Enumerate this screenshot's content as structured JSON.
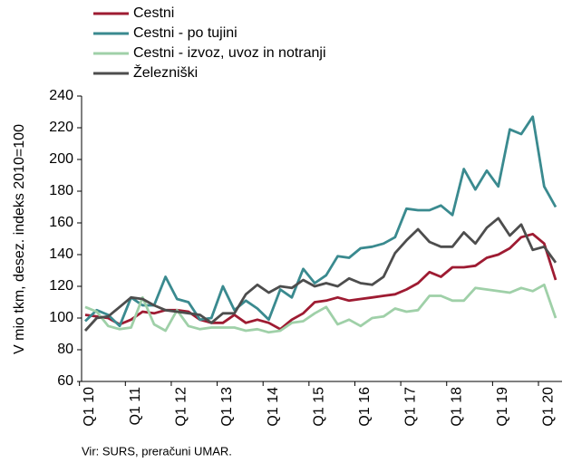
{
  "chart_data": {
    "type": "line",
    "y_label": "V mio tkm, desez. indeks 2010=100",
    "source": "Vir: SURS, preračuni UMAR.",
    "categories": [
      "Q1 10",
      null,
      null,
      null,
      "Q1 11",
      null,
      null,
      null,
      "Q1 12",
      null,
      null,
      null,
      "Q1 13",
      null,
      null,
      null,
      "Q1 14",
      null,
      null,
      null,
      "Q1 15",
      null,
      null,
      null,
      "Q1 16",
      null,
      null,
      null,
      "Q1 17",
      null,
      null,
      null,
      "Q1 18",
      null,
      null,
      null,
      "Q1 19",
      null,
      null,
      null,
      "Q1 20",
      null
    ],
    "series": [
      {
        "name": "Cestni",
        "color": "#9e1b32",
        "values": [
          102,
          101,
          100,
          96,
          99,
          104,
          103,
          105,
          105,
          104,
          99,
          97,
          97,
          102,
          97,
          99,
          97,
          93,
          99,
          103,
          110,
          111,
          113,
          111,
          112,
          113,
          114,
          115,
          118,
          122,
          129,
          126,
          132,
          132,
          133,
          138,
          140,
          144,
          151,
          153,
          147,
          124
        ]
      },
      {
        "name": "Cestni - po tujini",
        "color": "#3a8a8f",
        "values": [
          98,
          105,
          102,
          95,
          113,
          108,
          108,
          126,
          112,
          110,
          99,
          100,
          120,
          105,
          111,
          106,
          99,
          118,
          113,
          131,
          122,
          127,
          139,
          138,
          144,
          145,
          147,
          151,
          169,
          168,
          168,
          171,
          165,
          194,
          181,
          193,
          183,
          219,
          216,
          227,
          183,
          170
        ]
      },
      {
        "name": "Cestni - izvoz, uvoz in notranji",
        "color": "#9fd0a8",
        "values": [
          107,
          104,
          95,
          93,
          94,
          113,
          96,
          92,
          105,
          95,
          93,
          94,
          94,
          94,
          92,
          93,
          91,
          92,
          97,
          98,
          103,
          107,
          96,
          99,
          95,
          100,
          101,
          106,
          104,
          105,
          114,
          114,
          111,
          111,
          119,
          118,
          117,
          116,
          119,
          117,
          121,
          100
        ]
      },
      {
        "name": "Železniški",
        "color": "#4d4d4d",
        "values": [
          92,
          100,
          101,
          107,
          113,
          112,
          108,
          105,
          104,
          103,
          102,
          97,
          103,
          103,
          115,
          121,
          116,
          120,
          119,
          124,
          120,
          122,
          120,
          125,
          122,
          121,
          126,
          141,
          149,
          156,
          148,
          145,
          145,
          154,
          147,
          157,
          163,
          152,
          159,
          143,
          145,
          135
        ]
      }
    ],
    "ylim": [
      60,
      240
    ],
    "yticks": [
      60,
      80,
      100,
      120,
      140,
      160,
      180,
      200,
      220,
      240
    ]
  }
}
